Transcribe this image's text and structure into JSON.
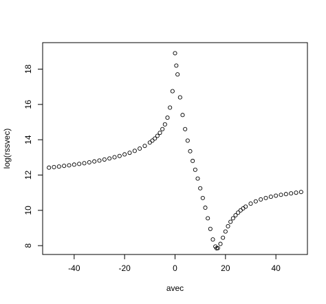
{
  "chart_data": {
    "type": "scatter",
    "title": "",
    "xlabel": "avec",
    "ylabel": "log(rssvec)",
    "xlim": [
      -52.5,
      52.5
    ],
    "ylim": [
      7.5,
      19.5
    ],
    "x_ticks": [
      -40,
      -20,
      0,
      20,
      40
    ],
    "x_tick_labels": [
      "-40",
      "-20",
      "0",
      "20",
      "40"
    ],
    "y_ticks": [
      8,
      10,
      12,
      14,
      16,
      18
    ],
    "y_tick_labels": [
      "8",
      "10",
      "12",
      "14",
      "16",
      "18"
    ],
    "grid": false,
    "marker": "open-circle",
    "points": [
      [
        -50,
        12.42
      ],
      [
        -48,
        12.45
      ],
      [
        -46,
        12.48
      ],
      [
        -44,
        12.52
      ],
      [
        -42,
        12.55
      ],
      [
        -40,
        12.59
      ],
      [
        -38,
        12.63
      ],
      [
        -36,
        12.67
      ],
      [
        -34,
        12.72
      ],
      [
        -32,
        12.77
      ],
      [
        -30,
        12.82
      ],
      [
        -28,
        12.88
      ],
      [
        -26,
        12.94
      ],
      [
        -24,
        13.01
      ],
      [
        -22,
        13.08
      ],
      [
        -20,
        13.17
      ],
      [
        -18,
        13.26
      ],
      [
        -16,
        13.37
      ],
      [
        -14,
        13.5
      ],
      [
        -12,
        13.65
      ],
      [
        -10,
        13.84
      ],
      [
        -9,
        13.95
      ],
      [
        -8,
        14.07
      ],
      [
        -7,
        14.22
      ],
      [
        -6,
        14.39
      ],
      [
        -5,
        14.6
      ],
      [
        -4,
        14.87
      ],
      [
        -3,
        15.25
      ],
      [
        -2,
        15.82
      ],
      [
        -1,
        16.75
      ],
      [
        0,
        18.9
      ],
      [
        0.5,
        18.2
      ],
      [
        1,
        17.7
      ],
      [
        2,
        16.4
      ],
      [
        3,
        15.4
      ],
      [
        4,
        14.6
      ],
      [
        5,
        13.95
      ],
      [
        6,
        13.35
      ],
      [
        7,
        12.8
      ],
      [
        8,
        12.3
      ],
      [
        9,
        11.8
      ],
      [
        10,
        11.25
      ],
      [
        11,
        10.7
      ],
      [
        12,
        10.15
      ],
      [
        13,
        9.55
      ],
      [
        14,
        8.95
      ],
      [
        15,
        8.35
      ],
      [
        16,
        7.95
      ],
      [
        16.5,
        7.85
      ],
      [
        17,
        7.86
      ],
      [
        18,
        8.1
      ],
      [
        19,
        8.45
      ],
      [
        20,
        8.8
      ],
      [
        21,
        9.1
      ],
      [
        22,
        9.35
      ],
      [
        23,
        9.55
      ],
      [
        24,
        9.72
      ],
      [
        25,
        9.87
      ],
      [
        26,
        10.0
      ],
      [
        27,
        10.11
      ],
      [
        28,
        10.21
      ],
      [
        30,
        10.38
      ],
      [
        32,
        10.51
      ],
      [
        34,
        10.62
      ],
      [
        36,
        10.7
      ],
      [
        38,
        10.77
      ],
      [
        40,
        10.83
      ],
      [
        42,
        10.88
      ],
      [
        44,
        10.92
      ],
      [
        46,
        10.96
      ],
      [
        48,
        11.0
      ],
      [
        50,
        11.04
      ]
    ]
  }
}
